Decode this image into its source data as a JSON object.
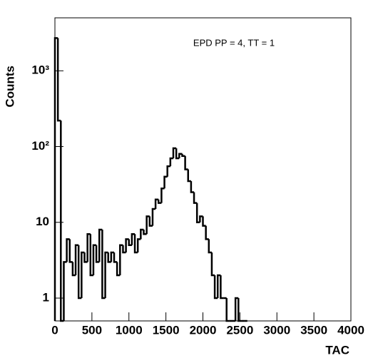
{
  "chart_data": {
    "type": "histogram",
    "annotation": "EPD PP = 4, TT = 1",
    "x_label": "TAC",
    "y_label": "Counts",
    "bins": [
      0,
      40,
      80,
      120,
      160,
      200,
      240,
      280,
      320,
      360,
      400,
      440,
      480,
      520,
      560,
      600,
      640,
      680,
      720,
      760,
      800,
      840,
      880,
      920,
      960,
      1000,
      1040,
      1080,
      1120,
      1160,
      1200,
      1240,
      1280,
      1320,
      1360,
      1400,
      1440,
      1480,
      1520,
      1560,
      1600,
      1640,
      1680,
      1720,
      1760,
      1800,
      1840,
      1880,
      1920,
      1960,
      2000,
      2040,
      2080,
      2120,
      2160,
      2200,
      2240,
      2280,
      2320,
      2360,
      2400,
      2440,
      2480,
      2520,
      2560,
      2600
    ],
    "values": [
      2700,
      220,
      0,
      3,
      6,
      3,
      2,
      5,
      1,
      4,
      3,
      7,
      2,
      5,
      3,
      8,
      1,
      4,
      3,
      4,
      3,
      2,
      5,
      4,
      6,
      5,
      7,
      4,
      6,
      8,
      7,
      12,
      9,
      15,
      20,
      18,
      28,
      40,
      55,
      70,
      95,
      70,
      80,
      75,
      50,
      35,
      25,
      18,
      10,
      12,
      9,
      6,
      4,
      2,
      1,
      2,
      1,
      1,
      0,
      0,
      0,
      1,
      0,
      0,
      0
    ],
    "color": "#000000",
    "log_y": true,
    "xlim": [
      0,
      4000
    ],
    "xticks": [
      0,
      500,
      1000,
      1500,
      2000,
      2500,
      3000,
      3500,
      4000
    ],
    "ylim": [
      0.5,
      5000
    ],
    "yticks": [
      1,
      10,
      {
        "value": 100,
        "label": "10²"
      },
      {
        "value": 1000,
        "label": "10³"
      }
    ]
  }
}
